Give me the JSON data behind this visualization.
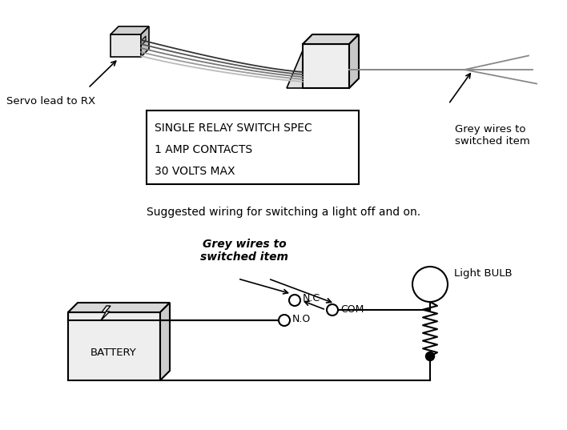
{
  "background_color": "#ffffff",
  "spec_lines": [
    "SINGLE RELAY SWITCH SPEC",
    "1 AMP CONTACTS",
    "30 VOLTS MAX"
  ],
  "label_servo": "Servo lead to RX",
  "label_grey_top": "Grey wires to\nswitched item",
  "label_suggested": "Suggested wiring for switching a light off and on.",
  "label_grey_bottom": "Grey wires to\nswitched item",
  "label_light_bulb": "Light BULB",
  "label_battery": "BATTERY",
  "label_nc": "N.C",
  "label_no": "N.O",
  "label_com": "COM",
  "font_main": "DejaVu Sans",
  "font_italic": "DejaVu Sans"
}
